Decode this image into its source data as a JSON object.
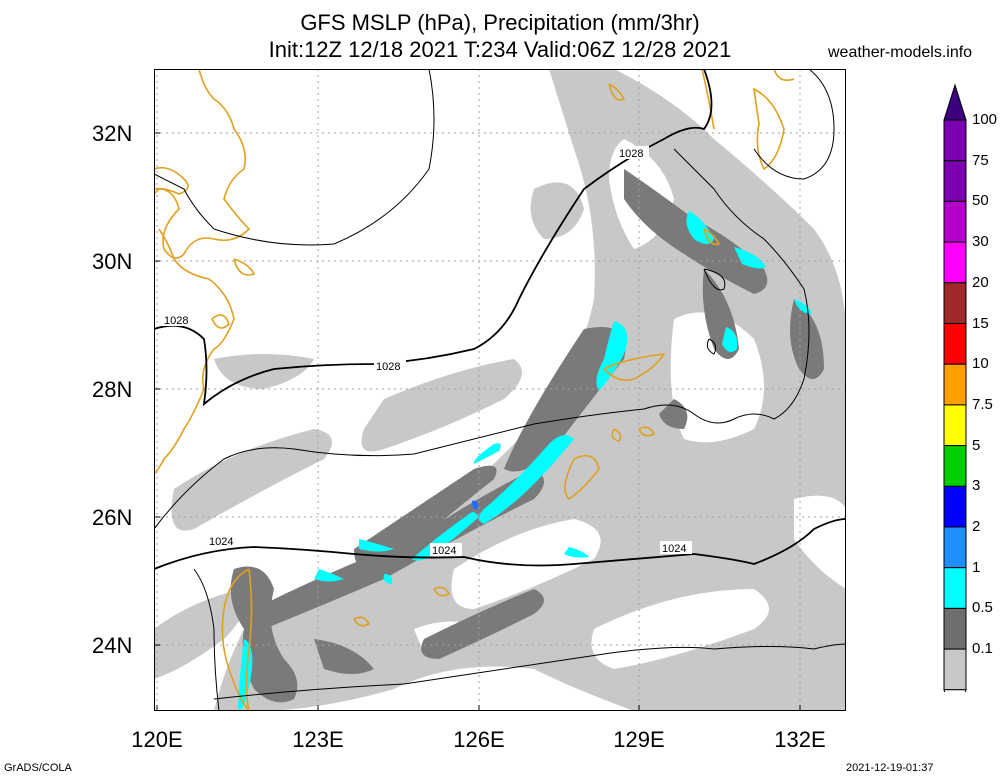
{
  "title_line1": "GFS MSLP (hPa), Precipitation (mm/3hr)",
  "title_line2": "Init:12Z 12/18 2021 T:234 Valid:06Z 12/28 2021",
  "credit": "weather-models.info",
  "lat_labels": [
    "32N",
    "30N",
    "28N",
    "26N",
    "24N"
  ],
  "lon_labels": [
    "120E",
    "123E",
    "126E",
    "129E",
    "132E"
  ],
  "isobar_labels": [
    "1028",
    "1028",
    "1028",
    "1024",
    "1024",
    "1024"
  ],
  "colorbar": {
    "labels": [
      "100",
      "75",
      "50",
      "30",
      "20",
      "15",
      "10",
      "7.5",
      "5",
      "3",
      "2",
      "1",
      "0.5",
      "0.1"
    ],
    "colors": [
      "#3d007f",
      "#7b00b0",
      "#b400c8",
      "#ff00ff",
      "#a02828",
      "#ff0000",
      "#ffa000",
      "#ffff00",
      "#00d000",
      "#0000ff",
      "#1e90ff",
      "#00ffff",
      "#6e6e6e",
      "#c8c8c8"
    ]
  },
  "colors": {
    "coast": "#e0a020",
    "isobar": "#000000",
    "grid": "#a0a0a0",
    "rain_light": "#c8c8c8",
    "rain_mid": "#7a7a7a",
    "rain_heavy": "#00ffff",
    "rain_max": "#1e6eff"
  },
  "footer_left": "GrADS/COLA",
  "footer_right": "2021-12-19-01:37"
}
